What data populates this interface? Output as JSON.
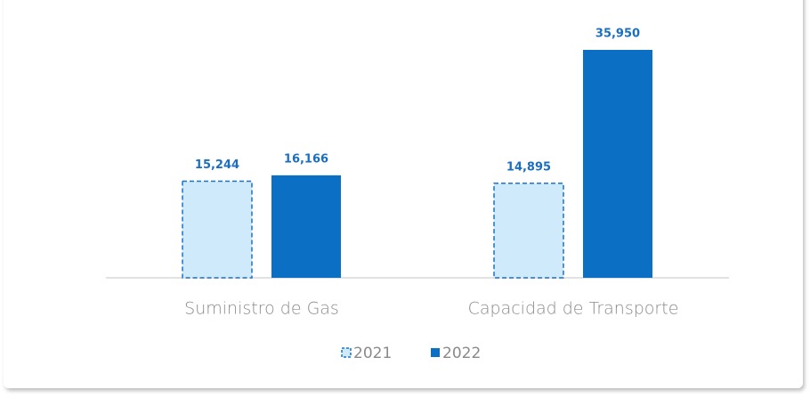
{
  "chart_data": {
    "type": "bar",
    "categories": [
      "Suministro de Gas",
      "Capacidad de Transporte"
    ],
    "series": [
      {
        "name": "2021",
        "color": "#cfeafb",
        "edgecolor": "#1a73c8",
        "linestyle": "dashed",
        "values": [
          15244,
          14895
        ],
        "value_labels": [
          "15,244",
          "14,895"
        ]
      },
      {
        "name": "2022",
        "color": "#0b6fc4",
        "values": [
          16166,
          35950
        ],
        "value_labels": [
          "16,166",
          "35,950"
        ]
      }
    ],
    "legend": "bottom"
  }
}
